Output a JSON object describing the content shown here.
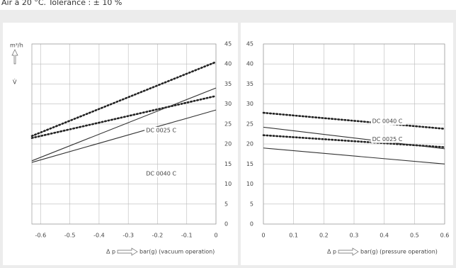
{
  "note": "Air à 20 °C. Tolerance : ± 10 %",
  "chart_data": [
    {
      "type": "line",
      "y_unit": "m³/h",
      "y_symbol": "V̇",
      "x_label_symbol": "Δ p",
      "x_label": "bar(g) (vacuum operation)",
      "x": [
        -0.63,
        0
      ],
      "xlim": [
        -0.63,
        0
      ],
      "xticks": [
        -0.6,
        -0.5,
        -0.4,
        -0.3,
        -0.2,
        -0.1,
        0
      ],
      "ylim": [
        0,
        45
      ],
      "yticks": [
        0,
        5,
        10,
        15,
        20,
        25,
        30,
        35,
        40,
        45
      ],
      "y_axis_side": "right",
      "grid": true,
      "series": [
        {
          "color": "#222",
          "dash": "dotted",
          "values": [
            22,
            40.5
          ]
        },
        {
          "color": "#222",
          "dash": "dotted",
          "values": [
            21.5,
            32
          ]
        },
        {
          "name": "DC 0040 C",
          "color": "#333",
          "dash": "solid",
          "values": [
            15.8,
            34
          ]
        },
        {
          "name": "DC 0025 C",
          "color": "#333",
          "dash": "solid",
          "values": [
            15.4,
            28.5
          ]
        }
      ]
    },
    {
      "type": "line",
      "x_label_symbol": "Δ p",
      "x_label": "bar(g) (pressure operation)",
      "x": [
        0,
        0.6
      ],
      "xlim": [
        0,
        0.6
      ],
      "xticks": [
        0,
        0.1,
        0.2,
        0.3,
        0.4,
        0.5,
        0.6
      ],
      "ylim": [
        0,
        45
      ],
      "yticks": [
        0,
        5,
        10,
        15,
        20,
        25,
        30,
        35,
        40,
        45
      ],
      "y_axis_side": "left",
      "grid": true,
      "series": [
        {
          "color": "#222",
          "dash": "dotted",
          "values": [
            27.8,
            23.8
          ]
        },
        {
          "color": "#222",
          "dash": "dotted",
          "values": [
            22.2,
            19.2
          ]
        },
        {
          "name": "DC 0040 C",
          "color": "#333",
          "dash": "solid",
          "values": [
            24.2,
            18.8
          ]
        },
        {
          "name": "DC 0025 C",
          "color": "#333",
          "dash": "solid",
          "values": [
            19,
            15
          ]
        }
      ]
    }
  ]
}
